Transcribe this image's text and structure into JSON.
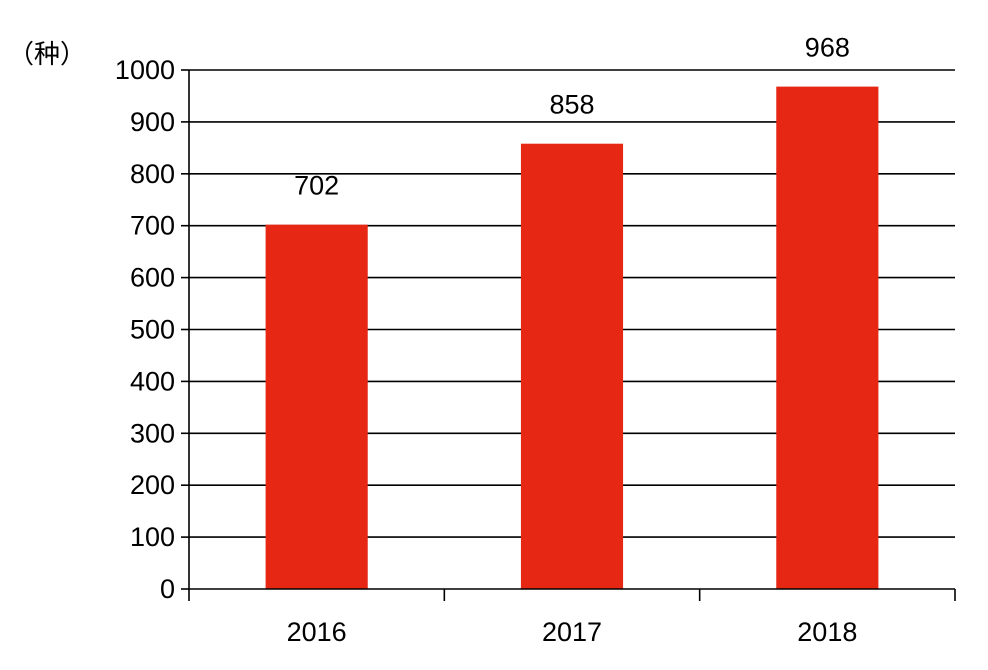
{
  "chart_data": {
    "type": "bar",
    "categories": [
      "2016",
      "2017",
      "2018"
    ],
    "values": [
      702,
      858,
      968
    ],
    "data_labels": [
      "702",
      "858",
      "968"
    ],
    "ylabel": "（种）",
    "ylim": [
      0,
      1000
    ],
    "yticks": [
      "0",
      "100",
      "200",
      "300",
      "400",
      "500",
      "600",
      "700",
      "800",
      "900",
      "1000"
    ],
    "grid": true,
    "bar_color": "#e52713",
    "legend": "none"
  }
}
